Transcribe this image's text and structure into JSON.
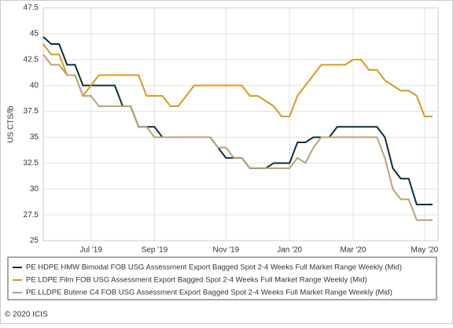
{
  "chart_data": {
    "type": "line",
    "y_label": "US CTS/lb",
    "categories": [
      null,
      null,
      null,
      null,
      null,
      null,
      "Jul '19",
      null,
      null,
      null,
      null,
      null,
      null,
      null,
      "Sep '19",
      null,
      null,
      null,
      null,
      null,
      null,
      null,
      null,
      "Nov '19",
      null,
      null,
      null,
      null,
      null,
      null,
      null,
      "Jan '20",
      null,
      null,
      null,
      null,
      null,
      null,
      null,
      "Mar '20",
      null,
      null,
      null,
      null,
      null,
      null,
      null,
      null,
      "May '20",
      null
    ],
    "series": [
      {
        "name": "PE HDPE HMW Bimodal FOB USG Assessment Export Bagged Spot 2-4 Weeks Full Market Range Weekly (Mid)",
        "color": "#0d2d3c",
        "values": [
          44.7,
          44,
          44,
          42,
          42,
          40,
          40,
          40,
          40,
          40,
          38,
          38,
          36,
          36,
          36,
          35,
          35,
          35,
          35,
          35,
          35,
          35,
          34,
          33,
          33,
          33,
          32,
          32,
          32,
          32.5,
          32.5,
          32.5,
          34.5,
          34.5,
          35,
          35,
          35,
          36,
          36,
          36,
          36,
          36,
          36,
          35,
          32,
          31,
          31,
          28.5,
          28.5,
          28.5
        ]
      },
      {
        "name": "PE LDPE Film FOB USG Assessment Export Bagged Spot 2-4 Weeks Full Market Range Weekly (Mid)",
        "color": "#d99a1a",
        "values": [
          44,
          43,
          43,
          41,
          41,
          39,
          40,
          41,
          41,
          41,
          41,
          41,
          41,
          39,
          39,
          39,
          38,
          38,
          39,
          40,
          40,
          40,
          40,
          40,
          40,
          40,
          39,
          39,
          38.5,
          38,
          37,
          37,
          39,
          40,
          41,
          42,
          42,
          42,
          42,
          42.5,
          42.5,
          41.5,
          41.5,
          40.5,
          40,
          39.5,
          39.5,
          39,
          37,
          37
        ]
      },
      {
        "name": "PE LLDPE Butene C4 FOB USG Assessment Export Bagged Spot 2-4 Weeks Full Market Range Weekly (Mid)",
        "color": "#b9a274",
        "values": [
          43,
          42,
          42,
          41,
          41,
          39,
          39,
          38,
          38,
          38,
          38,
          38,
          36,
          36,
          35,
          35,
          35,
          35,
          35,
          35,
          35,
          35,
          34,
          34,
          33,
          33,
          32,
          32,
          32,
          32,
          32,
          32,
          33,
          32.5,
          34,
          35,
          35,
          35,
          35,
          35,
          35,
          35,
          35,
          33,
          30,
          29,
          29,
          27,
          27,
          27
        ]
      }
    ],
    "ylim": [
      25,
      47.5
    ],
    "yticks": [
      25,
      27.5,
      30,
      32.5,
      35,
      37.5,
      40,
      42.5,
      45,
      47.5
    ],
    "grid": true,
    "footer": "© 2020 ICIS"
  }
}
